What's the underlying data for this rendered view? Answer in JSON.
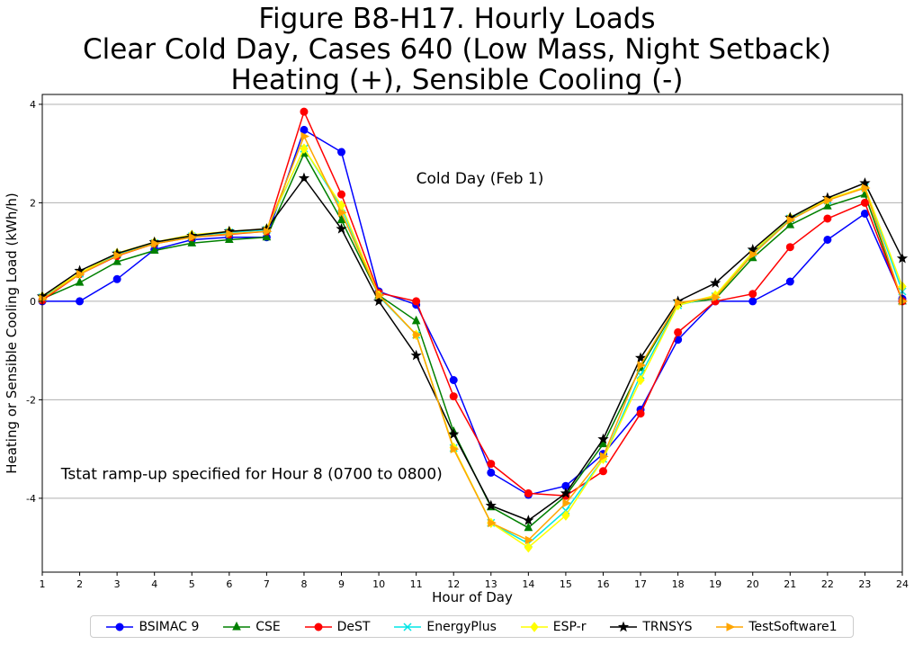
{
  "title_lines": [
    "Figure B8-H17. Hourly Loads",
    "Clear Cold Day, Cases 640 (Low Mass, Night Setback)",
    "Heating (+), Sensible Cooling (-)"
  ],
  "chart_data": {
    "type": "line",
    "title": "Figure B8-H17. Hourly Loads Clear Cold Day, Cases 640 (Low Mass, Night Setback) Heating (+), Sensible Cooling (-)",
    "xlabel": "Hour of Day",
    "ylabel": "Heating or Sensible Cooling Load (kWh/h)",
    "xlim": [
      1,
      24
    ],
    "ylim": [
      -5.5,
      4.2
    ],
    "yticks": [
      -4,
      -2,
      0,
      2,
      4
    ],
    "grid": "horizontal",
    "legend_position": "bottom",
    "x": [
      1,
      2,
      3,
      4,
      5,
      6,
      7,
      8,
      9,
      10,
      11,
      12,
      13,
      14,
      15,
      16,
      17,
      18,
      19,
      20,
      21,
      22,
      23,
      24
    ],
    "annotations": [
      {
        "text": "Cold Day (Feb 1)",
        "x": 11,
        "y": 2.5
      },
      {
        "text": "Tstat ramp-up specified for Hour 8 (0700 to 0800)",
        "x": 1.5,
        "y": -3.5
      }
    ],
    "series": [
      {
        "name": "BSIMAC 9",
        "color": "#0000ff",
        "marker": "circle",
        "values": [
          0,
          0,
          0.45,
          1.05,
          1.25,
          1.3,
          1.3,
          3.48,
          3.03,
          0.2,
          -0.07,
          -1.6,
          -3.48,
          -3.93,
          -3.75,
          -3.1,
          -2.2,
          -0.78,
          0,
          0,
          0.4,
          1.25,
          1.78,
          0.05
        ]
      },
      {
        "name": "CSE",
        "color": "#008000",
        "marker": "triangle",
        "values": [
          0.05,
          0.38,
          0.8,
          1.03,
          1.18,
          1.25,
          1.3,
          3.0,
          1.65,
          0.12,
          -0.4,
          -2.65,
          -4.18,
          -4.6,
          -3.95,
          -2.9,
          -1.35,
          -0.05,
          0.05,
          0.88,
          1.55,
          1.93,
          2.17,
          0
        ]
      },
      {
        "name": "DeST",
        "color": "#ff0000",
        "marker": "circle",
        "values": [
          0.02,
          0.55,
          0.92,
          1.17,
          1.3,
          1.36,
          1.42,
          3.85,
          2.17,
          0.17,
          0,
          -1.93,
          -3.3,
          -3.9,
          -3.95,
          -3.45,
          -2.28,
          -0.63,
          0,
          0.15,
          1.1,
          1.68,
          2.0,
          0
        ]
      },
      {
        "name": "EnergyPlus",
        "color": "#00e5e5",
        "marker": "x",
        "values": [
          0.08,
          0.56,
          0.95,
          1.18,
          1.32,
          1.4,
          1.45,
          3.1,
          1.9,
          0.1,
          -0.68,
          -2.98,
          -4.5,
          -4.92,
          -4.25,
          -3.2,
          -1.5,
          -0.08,
          0.1,
          0.98,
          1.68,
          2.05,
          2.32,
          0.2
        ]
      },
      {
        "name": "ESP-r",
        "color": "#ffff00",
        "marker": "diamond",
        "values": [
          0.1,
          0.57,
          0.98,
          1.2,
          1.35,
          1.42,
          1.47,
          3.1,
          1.95,
          0.12,
          -0.68,
          -2.97,
          -4.5,
          -5.0,
          -4.35,
          -3.2,
          -1.6,
          -0.08,
          0.12,
          1.0,
          1.7,
          2.07,
          2.32,
          0.3
        ]
      },
      {
        "name": "TRNSYS",
        "color": "#000000",
        "marker": "star",
        "values": [
          0.1,
          0.62,
          0.97,
          1.2,
          1.33,
          1.42,
          1.47,
          2.5,
          1.47,
          0,
          -1.1,
          -2.7,
          -4.15,
          -4.45,
          -3.9,
          -2.8,
          -1.15,
          0,
          0.37,
          1.05,
          1.7,
          2.1,
          2.4,
          0.87
        ]
      },
      {
        "name": "TestSoftware1",
        "color": "#ffa500",
        "marker": "triangle-right",
        "values": [
          0.05,
          0.55,
          0.93,
          1.17,
          1.3,
          1.37,
          1.42,
          3.35,
          1.8,
          0.12,
          -0.68,
          -3.0,
          -4.5,
          -4.85,
          -4.1,
          -3.15,
          -1.3,
          -0.03,
          0.08,
          0.95,
          1.65,
          2.05,
          2.3,
          0
        ]
      }
    ]
  }
}
